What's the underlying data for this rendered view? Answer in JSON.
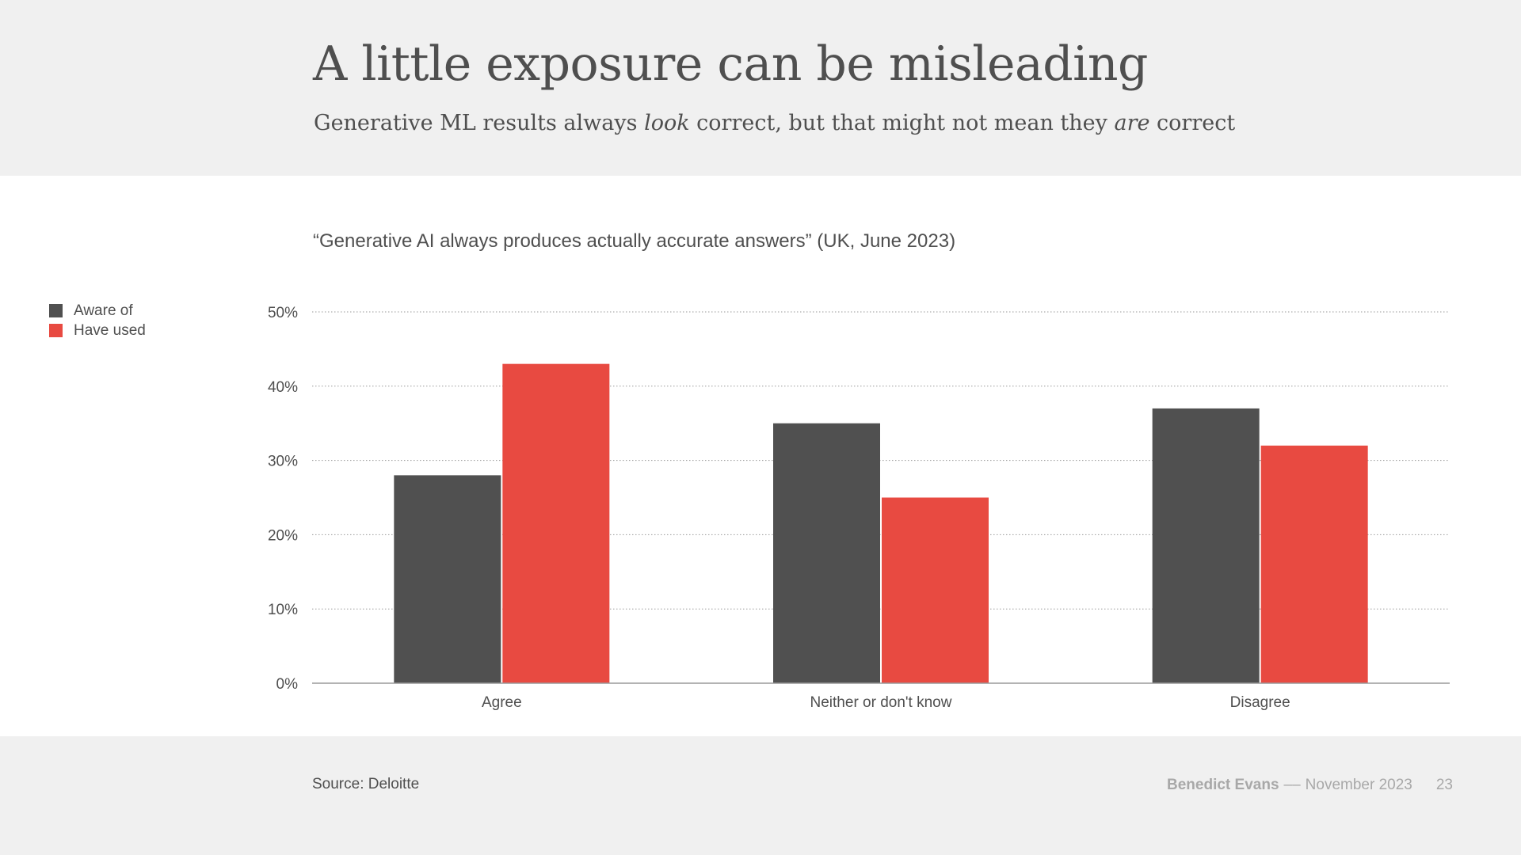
{
  "slide": {
    "title": "A little exposure can be misleading",
    "subtitle_parts": [
      "Generative ML results always ",
      "look",
      " correct, but that might not mean they ",
      "are",
      " correct"
    ],
    "source": "Source: Deloitte",
    "author": "Benedict Evans",
    "separator": "––",
    "date": "November 2023",
    "page_number": "23"
  },
  "chart_data": {
    "type": "bar",
    "title": "“Generative AI always produces actually accurate answers” (UK, June 2023)",
    "xlabel": "",
    "ylabel": "",
    "categories": [
      "Agree",
      "Neither or don't know",
      "Disagree"
    ],
    "series": [
      {
        "name": "Aware of",
        "color": "#505050",
        "values": [
          28,
          35,
          37
        ]
      },
      {
        "name": "Have used",
        "color": "#e84a41",
        "values": [
          43,
          25,
          32
        ]
      }
    ],
    "ylim": [
      0,
      50
    ],
    "yticks": [
      0,
      10,
      20,
      30,
      40,
      50
    ],
    "ytick_labels": [
      "0%",
      "10%",
      "20%",
      "30%",
      "40%",
      "50%"
    ],
    "grid": true,
    "legend_position": "top-left"
  }
}
